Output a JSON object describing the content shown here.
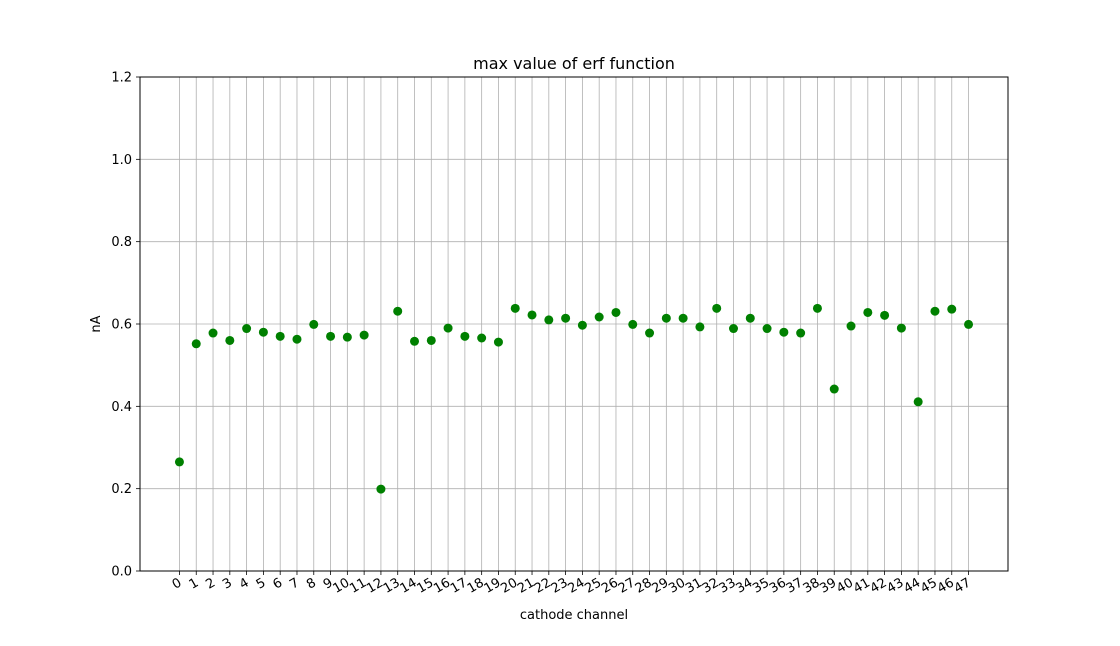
{
  "chart_data": {
    "type": "scatter",
    "title": "max value of erf function",
    "xlabel": "cathode channel",
    "ylabel": "nA",
    "ylim": [
      0.0,
      1.2
    ],
    "xlim": [
      -2.35,
      49.35
    ],
    "grid": true,
    "marker_color": "#008000",
    "grid_color": "#b0b0b0",
    "yticks": [
      {
        "value": 0.0,
        "label": "0.0"
      },
      {
        "value": 0.2,
        "label": "0.2"
      },
      {
        "value": 0.4,
        "label": "0.4"
      },
      {
        "value": 0.6,
        "label": "0.6"
      },
      {
        "value": 0.8,
        "label": "0.8"
      },
      {
        "value": 1.0,
        "label": "1.0"
      },
      {
        "value": 1.2,
        "label": "1.2"
      }
    ],
    "x": [
      0,
      1,
      2,
      3,
      4,
      5,
      6,
      7,
      8,
      9,
      10,
      11,
      12,
      13,
      14,
      15,
      16,
      17,
      18,
      19,
      20,
      21,
      22,
      23,
      24,
      25,
      26,
      27,
      28,
      29,
      30,
      31,
      32,
      33,
      34,
      35,
      36,
      37,
      38,
      39,
      40,
      41,
      42,
      43,
      44,
      45,
      46,
      47
    ],
    "xtick_labels": [
      "0",
      "1",
      "2",
      "3",
      "4",
      "5",
      "6",
      "7",
      "8",
      "9",
      "10",
      "11",
      "12",
      "13",
      "14",
      "15",
      "16",
      "17",
      "18",
      "19",
      "20",
      "21",
      "22",
      "23",
      "24",
      "25",
      "26",
      "27",
      "28",
      "29",
      "30",
      "31",
      "32",
      "33",
      "34",
      "35",
      "36",
      "37",
      "38",
      "39",
      "40",
      "41",
      "42",
      "43",
      "44",
      "45",
      "46",
      "47"
    ],
    "y": [
      0.265,
      0.552,
      0.578,
      0.56,
      0.589,
      0.58,
      0.57,
      0.563,
      0.599,
      0.57,
      0.568,
      0.573,
      0.199,
      0.631,
      0.558,
      0.56,
      0.59,
      0.57,
      0.566,
      0.556,
      0.638,
      0.622,
      0.61,
      0.614,
      0.597,
      0.617,
      0.628,
      0.599,
      0.578,
      0.614,
      0.614,
      0.593,
      0.638,
      0.589,
      0.614,
      0.589,
      0.58,
      0.578,
      0.638,
      0.442,
      0.595,
      0.628,
      0.621,
      0.59,
      0.411,
      0.631,
      0.636,
      0.599
    ]
  }
}
